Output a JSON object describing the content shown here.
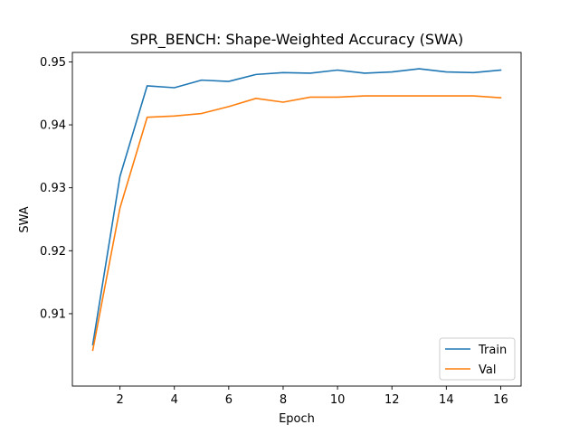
{
  "chart_data": {
    "type": "line",
    "title": "SPR_BENCH: Shape-Weighted Accuracy (SWA)",
    "xlabel": "Epoch",
    "ylabel": "SWA",
    "xlim": [
      0.25,
      16.75
    ],
    "ylim": [
      0.8985,
      0.9515
    ],
    "x": [
      1,
      2,
      3,
      4,
      5,
      6,
      7,
      8,
      9,
      10,
      11,
      12,
      13,
      14,
      15,
      16
    ],
    "xticks": [
      2,
      4,
      6,
      8,
      10,
      12,
      14,
      16
    ],
    "xtick_labels": [
      "2",
      "4",
      "6",
      "8",
      "10",
      "12",
      "14",
      "16"
    ],
    "yticks": [
      0.91,
      0.92,
      0.93,
      0.94,
      0.95
    ],
    "ytick_labels": [
      "0.91",
      "0.92",
      "0.93",
      "0.94",
      "0.95"
    ],
    "grid": false,
    "legend_position": "lower-right",
    "series": [
      {
        "name": "Train",
        "color": "#1f77b4",
        "values": [
          0.9051,
          0.9318,
          0.9462,
          0.9459,
          0.9471,
          0.9469,
          0.948,
          0.9483,
          0.9482,
          0.9487,
          0.9482,
          0.9484,
          0.9489,
          0.9484,
          0.9483,
          0.9487
        ]
      },
      {
        "name": "Val",
        "color": "#ff7f0e",
        "values": [
          0.9042,
          0.9268,
          0.9412,
          0.9414,
          0.9418,
          0.9429,
          0.9442,
          0.9436,
          0.9444,
          0.9444,
          0.9446,
          0.9446,
          0.9446,
          0.9446,
          0.9446,
          0.9443
        ]
      }
    ]
  }
}
